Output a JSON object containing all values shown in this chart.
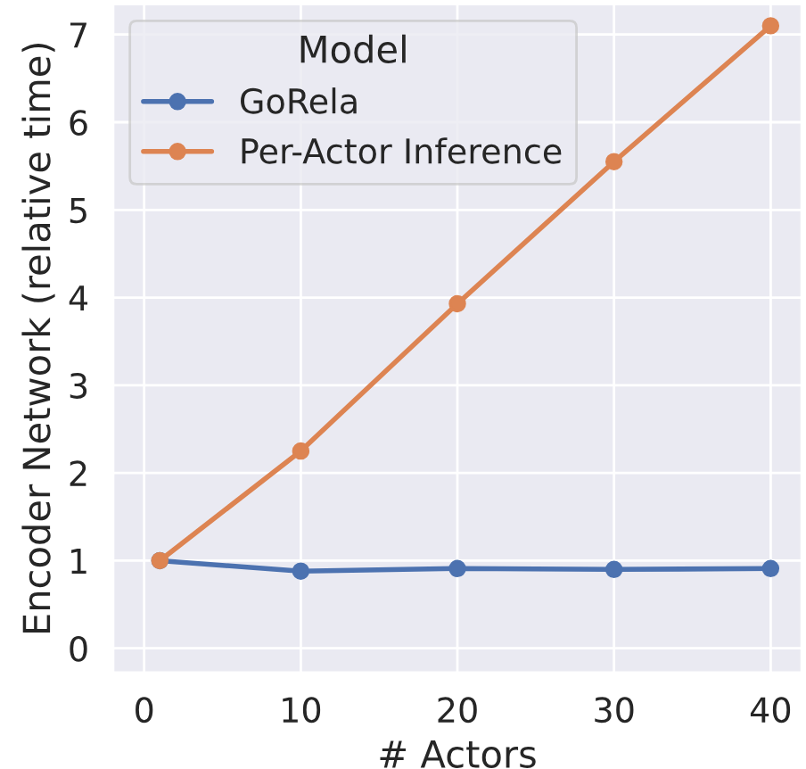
{
  "chart_data": {
    "type": "line",
    "xlabel": "# Actors",
    "ylabel": "Encoder Network (relative time)",
    "legend_title": "Model",
    "x": [
      1,
      10,
      20,
      30,
      40
    ],
    "series": [
      {
        "name": "GoRela",
        "color": "#4c72b0",
        "values": [
          1.0,
          0.88,
          0.91,
          0.9,
          0.91
        ]
      },
      {
        "name": "Per-Actor Inference",
        "color": "#dd8452",
        "values": [
          1.0,
          2.25,
          3.93,
          5.55,
          7.1
        ]
      }
    ],
    "xlim": [
      -2,
      42
    ],
    "xticks": [
      0,
      10,
      20,
      30,
      40
    ],
    "ylim": [
      -0.28,
      7.35
    ],
    "yticks": [
      0,
      1,
      2,
      3,
      4,
      5,
      6,
      7
    ],
    "grid": true,
    "legend": "top left",
    "marker": "circle",
    "line_style": "solid"
  }
}
